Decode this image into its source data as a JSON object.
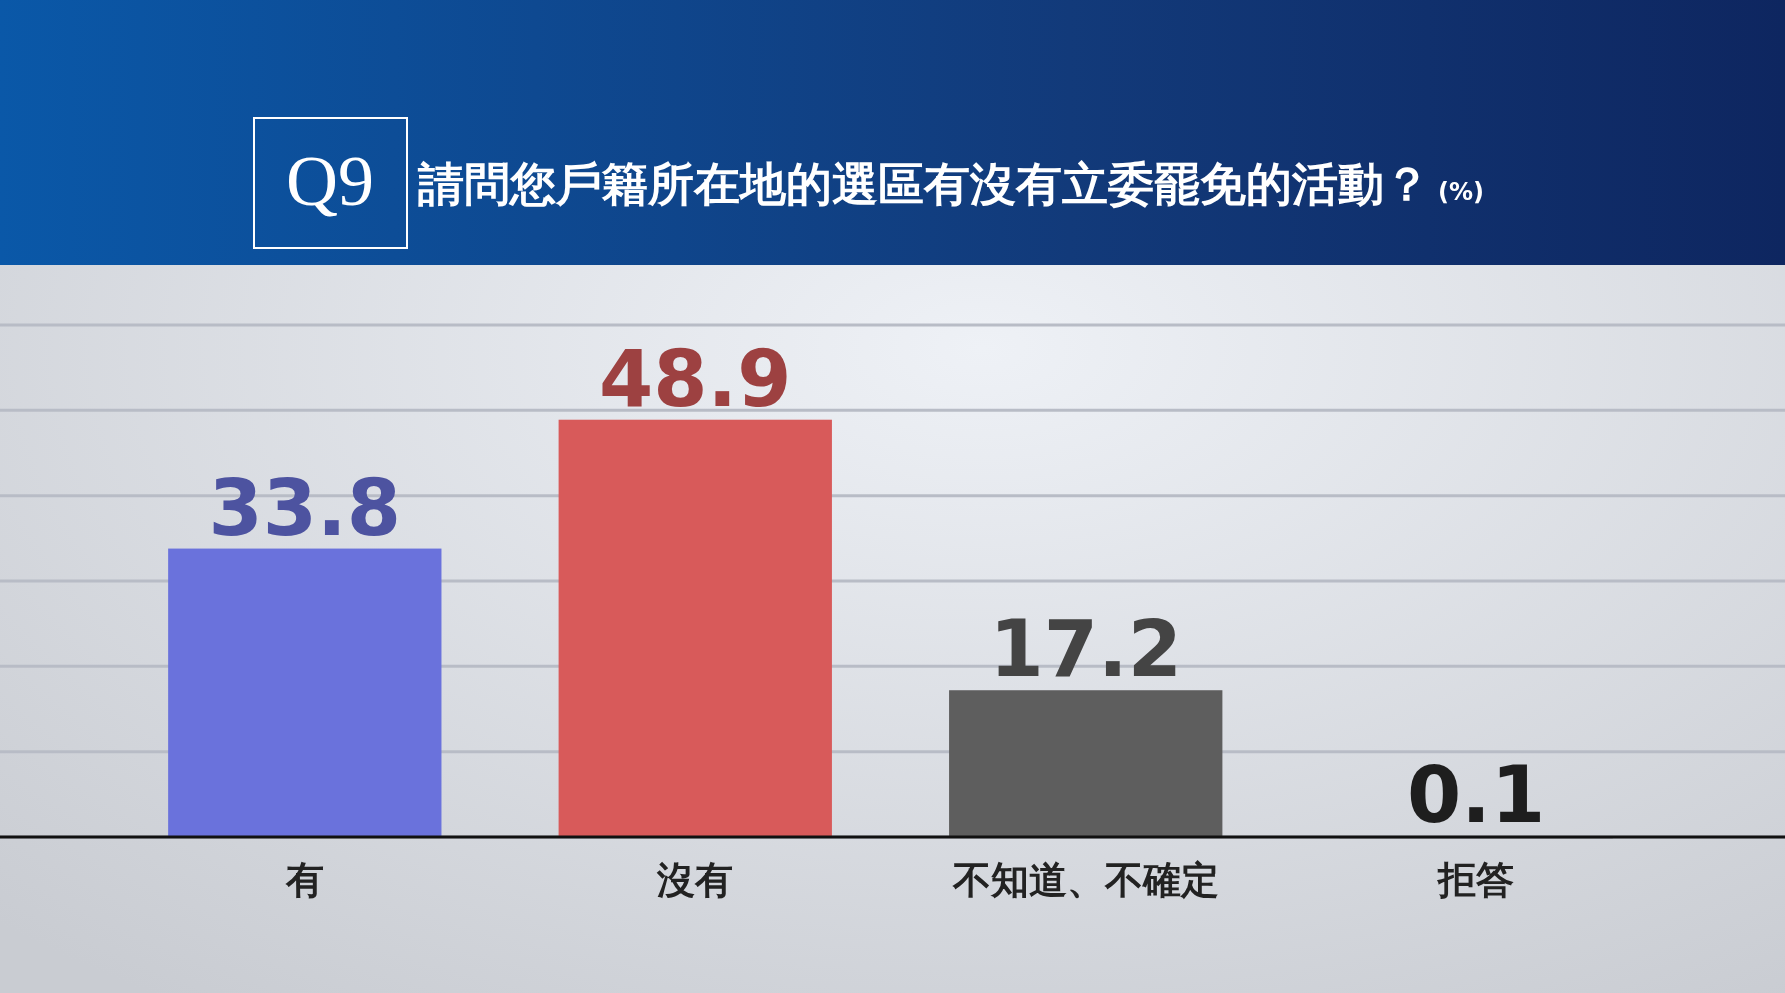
{
  "chart_data": {
    "type": "bar",
    "title": "請問您戶籍所在地的選區有沒有立委罷免的活動？",
    "subtitle": "(%)",
    "annotations": [
      "Q9"
    ],
    "categories": [
      "有",
      "沒有",
      "不知道、不確定",
      "拒答"
    ],
    "values": [
      33.8,
      48.9,
      17.2,
      0.1
    ],
    "colors": [
      "#6a72dc",
      "#d85a5a",
      "#5e5e5e",
      "#2a2a2a"
    ],
    "ylim": [
      0,
      60
    ],
    "yticks": [
      {
        "value": 0,
        "label": null
      },
      {
        "value": 10,
        "label": null
      },
      {
        "value": 20,
        "label": null
      },
      {
        "value": 30,
        "label": null
      },
      {
        "value": 40,
        "label": null
      },
      {
        "value": 50,
        "label": null
      },
      {
        "value": 60,
        "label": null
      }
    ],
    "grid": "y",
    "tick_labels": "x",
    "data_labels": true
  }
}
